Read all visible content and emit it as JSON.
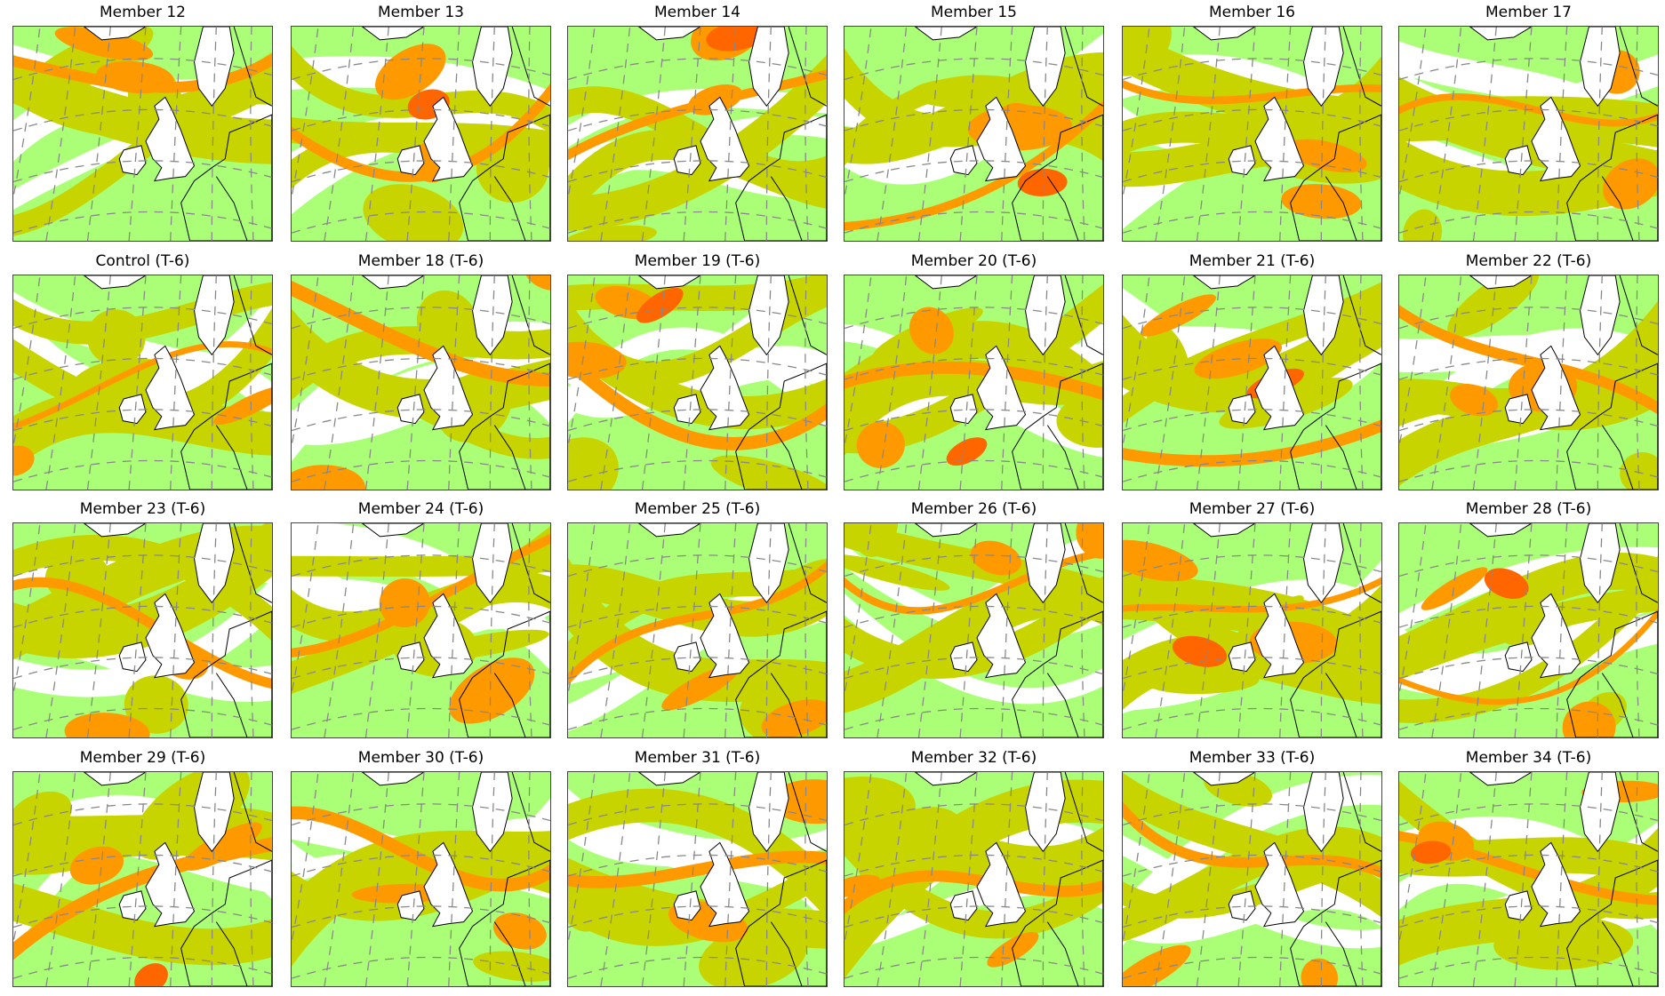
{
  "panels": [
    {
      "title": "Member 12"
    },
    {
      "title": "Member 13"
    },
    {
      "title": "Member 14"
    },
    {
      "title": "Member 15"
    },
    {
      "title": "Member 16"
    },
    {
      "title": "Member 17"
    },
    {
      "title": "Control (T-6)"
    },
    {
      "title": "Member 18 (T-6)"
    },
    {
      "title": "Member 19 (T-6)"
    },
    {
      "title": "Member 20 (T-6)"
    },
    {
      "title": "Member 21 (T-6)"
    },
    {
      "title": "Member 22 (T-6)"
    },
    {
      "title": "Member 23 (T-6)"
    },
    {
      "title": "Member 24 (T-6)"
    },
    {
      "title": "Member 25 (T-6)"
    },
    {
      "title": "Member 26 (T-6)"
    },
    {
      "title": "Member 27 (T-6)"
    },
    {
      "title": "Member 28 (T-6)"
    },
    {
      "title": "Member 29 (T-6)"
    },
    {
      "title": "Member 30 (T-6)"
    },
    {
      "title": "Member 31 (T-6)"
    },
    {
      "title": "Member 32 (T-6)"
    },
    {
      "title": "Member 33 (T-6)"
    },
    {
      "title": "Member 34 (T-6)"
    }
  ],
  "colors": {
    "level_low": "#ffffff",
    "level_1": "#aaff77",
    "level_2": "#c8d400",
    "level_3": "#ff9900",
    "level_4": "#ff6600",
    "coastline": "#000000",
    "gridline": "#888888"
  }
}
